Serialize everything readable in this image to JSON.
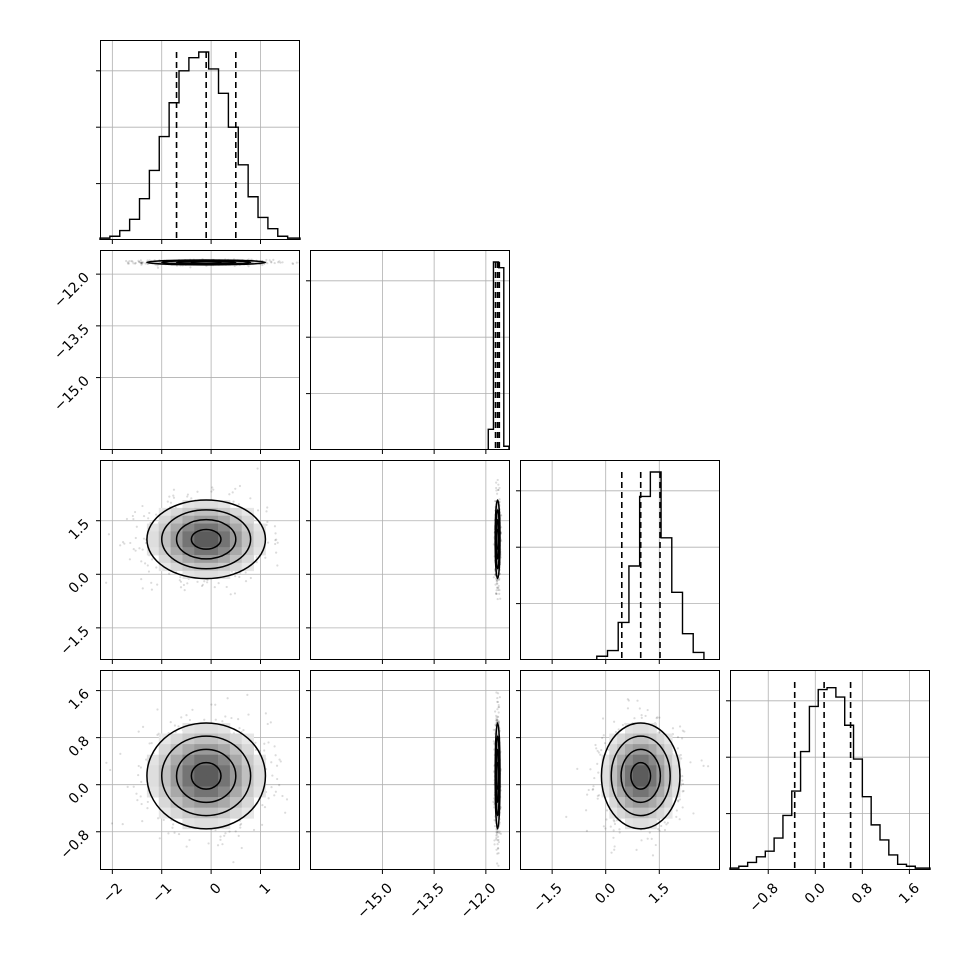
{
  "chart_data": {
    "type": "corner",
    "grid": true,
    "params": [
      {
        "range": [
          -2.25,
          1.8
        ],
        "ticks": [
          -2,
          -1,
          0,
          1
        ],
        "tick_labels": [
          "−2",
          "−1",
          "0",
          "1"
        ],
        "quantiles": [
          -0.7,
          -0.1,
          0.5
        ],
        "hist_edges": [
          -2.25,
          -2.05,
          -1.85,
          -1.65,
          -1.45,
          -1.25,
          -1.05,
          -0.85,
          -0.65,
          -0.45,
          -0.25,
          -0.05,
          0.15,
          0.35,
          0.55,
          0.75,
          0.95,
          1.15,
          1.35,
          1.55,
          1.8
        ],
        "hist_counts": [
          0.01,
          0.02,
          0.05,
          0.11,
          0.22,
          0.37,
          0.55,
          0.73,
          0.9,
          0.97,
          1.0,
          0.91,
          0.78,
          0.6,
          0.4,
          0.23,
          0.12,
          0.06,
          0.02,
          0.01
        ]
      },
      {
        "range": [
          -17.1,
          -11.3
        ],
        "ticks": [
          -15.0,
          -13.5,
          -12.0
        ],
        "tick_labels": [
          "−15.0",
          "−13.5",
          "−12.0"
        ],
        "quantiles": [
          -11.72,
          -11.66,
          -11.61
        ],
        "hist_edges": [
          -11.93,
          -11.78,
          -11.63,
          -11.48,
          -11.33
        ],
        "hist_counts": [
          0.11,
          1.0,
          0.97,
          0.02
        ]
      },
      {
        "range": [
          -2.4,
          3.2
        ],
        "ticks": [
          -1.5,
          0.0,
          1.5
        ],
        "tick_labels": [
          "−1.5",
          "0.0",
          "1.5"
        ],
        "quantiles": [
          0.45,
          0.98,
          1.52
        ],
        "hist_edges": [
          -0.25,
          0.05,
          0.35,
          0.65,
          0.95,
          1.25,
          1.55,
          1.85,
          2.15,
          2.45,
          2.75
        ],
        "hist_counts": [
          0.02,
          0.05,
          0.2,
          0.5,
          0.87,
          1.0,
          0.65,
          0.36,
          0.14,
          0.04
        ]
      },
      {
        "range": [
          -1.45,
          1.95
        ],
        "ticks": [
          -0.8,
          0.0,
          0.8,
          1.6
        ],
        "tick_labels": [
          "−0.8",
          "0.0",
          "0.8",
          "1.6"
        ],
        "quantiles": [
          -0.35,
          0.15,
          0.6
        ],
        "hist_edges": [
          -1.45,
          -1.3,
          -1.15,
          -1.0,
          -0.85,
          -0.7,
          -0.55,
          -0.4,
          -0.25,
          -0.1,
          0.05,
          0.2,
          0.35,
          0.5,
          0.65,
          0.8,
          0.95,
          1.1,
          1.25,
          1.4,
          1.55,
          1.7,
          1.85,
          1.95
        ],
        "hist_counts": [
          0.01,
          0.02,
          0.04,
          0.07,
          0.1,
          0.17,
          0.29,
          0.42,
          0.63,
          0.87,
          0.96,
          0.97,
          0.92,
          0.77,
          0.59,
          0.39,
          0.24,
          0.16,
          0.08,
          0.03,
          0.02,
          0.01,
          0.01
        ]
      }
    ],
    "pairs": [
      {
        "row": 1,
        "col": 0,
        "center": [
          -0.1,
          -11.66
        ],
        "spread": [
          0.6,
          0.035
        ]
      },
      {
        "row": 2,
        "col": 0,
        "center": [
          -0.1,
          0.98
        ],
        "spread": [
          0.6,
          0.55
        ]
      },
      {
        "row": 2,
        "col": 1,
        "center": [
          -11.66,
          0.98
        ],
        "spread": [
          0.035,
          0.55
        ]
      },
      {
        "row": 3,
        "col": 0,
        "center": [
          -0.1,
          0.15
        ],
        "spread": [
          0.6,
          0.45
        ]
      },
      {
        "row": 3,
        "col": 1,
        "center": [
          -11.66,
          0.15
        ],
        "spread": [
          0.035,
          0.45
        ]
      },
      {
        "row": 3,
        "col": 2,
        "center": [
          0.98,
          0.15
        ],
        "spread": [
          0.55,
          0.45
        ]
      }
    ],
    "contour_levels": [
      0.5,
      1.0,
      1.5,
      2.0
    ]
  }
}
